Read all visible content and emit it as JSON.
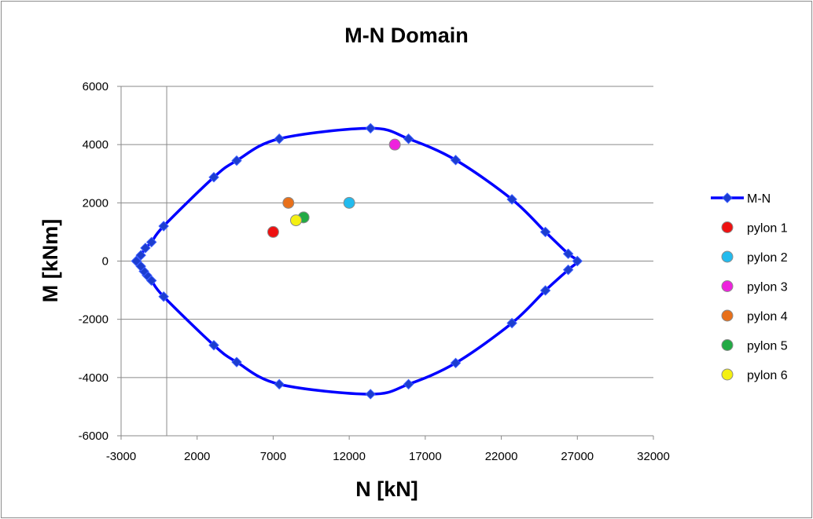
{
  "chart_data": {
    "type": "scatter",
    "title": "M-N Domain",
    "xlabel": "N [kN]",
    "ylabel": "M [kNm]",
    "xlim": [
      -3000,
      32000
    ],
    "ylim": [
      -6000,
      6000
    ],
    "xticks": [
      -3000,
      2000,
      7000,
      12000,
      17000,
      22000,
      27000,
      32000
    ],
    "yticks": [
      -6000,
      -4000,
      -2000,
      0,
      2000,
      4000,
      6000
    ],
    "grid": true,
    "legend_position": "right",
    "series": [
      {
        "name": "M-N",
        "kind": "line",
        "marker": "diamond",
        "color": "#0000ff",
        "points": [
          [
            -2000,
            0
          ],
          [
            -1700,
            200
          ],
          [
            -1400,
            450
          ],
          [
            -1000,
            650
          ],
          [
            -200,
            1200
          ],
          [
            3100,
            2880
          ],
          [
            4600,
            3450
          ],
          [
            7400,
            4200
          ],
          [
            13400,
            4560
          ],
          [
            15900,
            4200
          ],
          [
            19000,
            3470
          ],
          [
            22700,
            2120
          ],
          [
            24900,
            1000
          ],
          [
            26400,
            250
          ],
          [
            27000,
            0
          ],
          [
            26400,
            -300
          ],
          [
            24900,
            -1010
          ],
          [
            22700,
            -2130
          ],
          [
            19000,
            -3500
          ],
          [
            15900,
            -4230
          ],
          [
            13400,
            -4570
          ],
          [
            7400,
            -4230
          ],
          [
            4600,
            -3470
          ],
          [
            3100,
            -2890
          ],
          [
            -200,
            -1220
          ],
          [
            -1000,
            -670
          ],
          [
            -1300,
            -490
          ],
          [
            -1500,
            -350
          ],
          [
            -1700,
            -180
          ],
          [
            -2000,
            0
          ]
        ]
      },
      {
        "name": "pylon 1",
        "kind": "point",
        "color": "#ee1111",
        "points": [
          [
            7000,
            1000
          ]
        ]
      },
      {
        "name": "pylon 2",
        "kind": "point",
        "color": "#22bbee",
        "points": [
          [
            12000,
            2000
          ]
        ]
      },
      {
        "name": "pylon 3",
        "kind": "point",
        "color": "#ee22dd",
        "points": [
          [
            15000,
            4000
          ]
        ]
      },
      {
        "name": "pylon 4",
        "kind": "point",
        "color": "#e8701a",
        "points": [
          [
            8000,
            2000
          ]
        ]
      },
      {
        "name": "pylon 5",
        "kind": "point",
        "color": "#22aa44",
        "points": [
          [
            9000,
            1500
          ]
        ]
      },
      {
        "name": "pylon 6",
        "kind": "point",
        "color": "#f4f011",
        "points": [
          [
            8500,
            1400
          ]
        ]
      }
    ]
  }
}
